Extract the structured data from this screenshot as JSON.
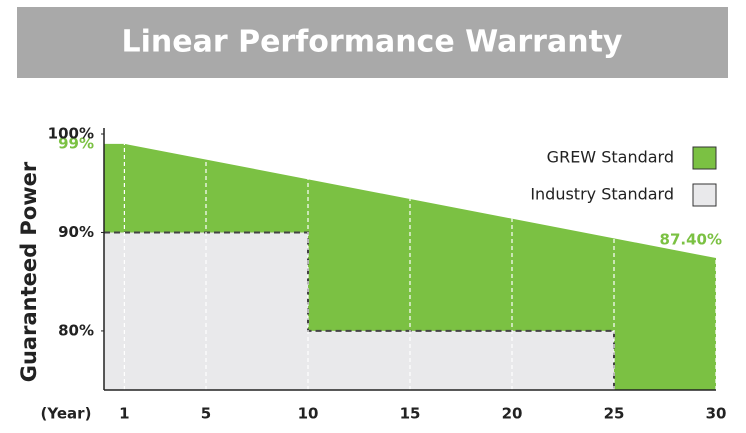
{
  "chart_data": {
    "type": "area",
    "title": "Linear Performance Warranty",
    "ylabel": "Guaranteed Power",
    "xlabel": "(Year)",
    "xlim": [
      0,
      30
    ],
    "xticks": [
      1,
      5,
      10,
      15,
      20,
      25,
      30
    ],
    "ylim": [
      74,
      100
    ],
    "yticks": [
      {
        "value": 100,
        "label": "100%"
      },
      {
        "value": 90,
        "label": "90%"
      },
      {
        "value": 80,
        "label": "80%"
      }
    ],
    "grid": true,
    "legend": "upper right",
    "series": [
      {
        "name": "GREW Standard",
        "color": "#7bc143",
        "x": [
          0,
          1,
          30
        ],
        "values": [
          99,
          99,
          87.4
        ],
        "value_labels": [
          "99%",
          null,
          "87.40%"
        ]
      },
      {
        "name": "Industry Standard",
        "color": "#e9e9eb",
        "x": [
          0,
          10,
          10,
          25
        ],
        "values": [
          90,
          90,
          80,
          80
        ]
      }
    ]
  }
}
